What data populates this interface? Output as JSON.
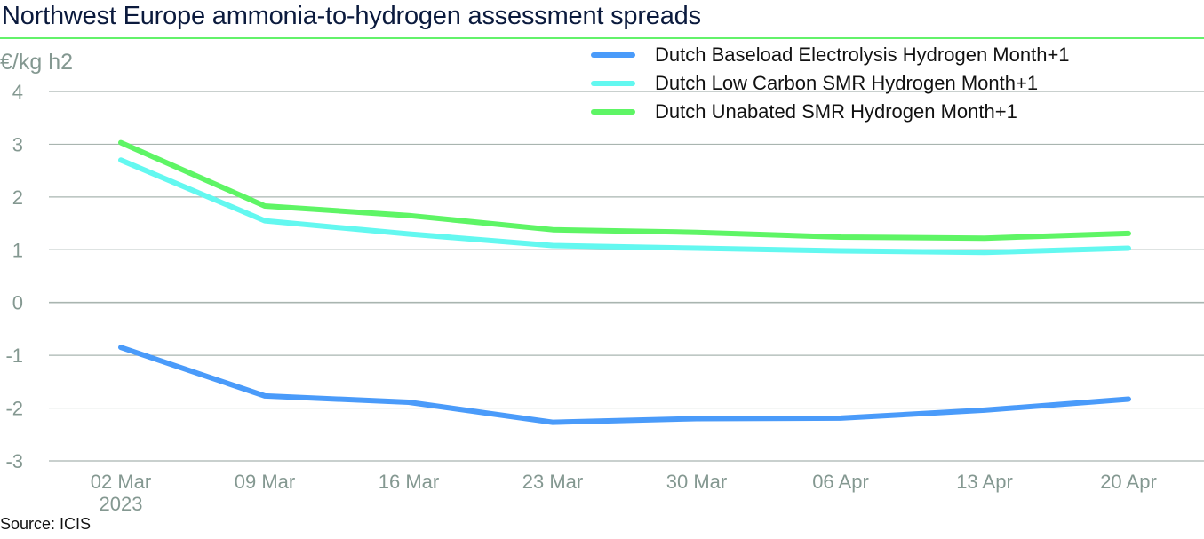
{
  "title": "Northwest Europe ammonia-to-hydrogen assessment spreads",
  "source": "Source: ICIS",
  "colors": {
    "title_rule": "#63f26a",
    "grid": "#a9b5b0",
    "axis_text": "#849891"
  },
  "chart_data": {
    "type": "line",
    "title": "Northwest Europe ammonia-to-hydrogen assessment spreads",
    "xlabel": "",
    "ylabel": "€/kg h2",
    "ylim": [
      -3,
      4
    ],
    "yticks": [
      4,
      3,
      2,
      1,
      0,
      -1,
      -2,
      -3
    ],
    "grid": true,
    "legend_position": "top-right",
    "categories": [
      "02 Mar\n2023",
      "09 Mar",
      "16 Mar",
      "23 Mar",
      "30 Mar",
      "06 Apr",
      "13 Apr",
      "20 Apr"
    ],
    "category_lines": [
      [
        "02 Mar",
        "2023"
      ],
      [
        "09 Mar"
      ],
      [
        "16 Mar"
      ],
      [
        "23 Mar"
      ],
      [
        "30 Mar"
      ],
      [
        "06 Apr"
      ],
      [
        "13 Apr"
      ],
      [
        "20 Apr"
      ]
    ],
    "series": [
      {
        "name": "Dutch Baseload Electrolysis Hydrogen Month+1",
        "color": "#4a9bfa",
        "values": [
          -0.85,
          -1.77,
          -1.89,
          -2.27,
          -2.2,
          -2.19,
          -2.04,
          -1.83
        ]
      },
      {
        "name": "Dutch Low Carbon SMR Hydrogen Month+1",
        "color": "#63f8f0",
        "values": [
          2.7,
          1.55,
          1.3,
          1.08,
          1.03,
          0.98,
          0.95,
          1.03
        ]
      },
      {
        "name": "Dutch Unabated SMR Hydrogen Month+1",
        "color": "#5ef565",
        "values": [
          3.03,
          1.83,
          1.65,
          1.38,
          1.33,
          1.24,
          1.22,
          1.31
        ]
      }
    ]
  }
}
